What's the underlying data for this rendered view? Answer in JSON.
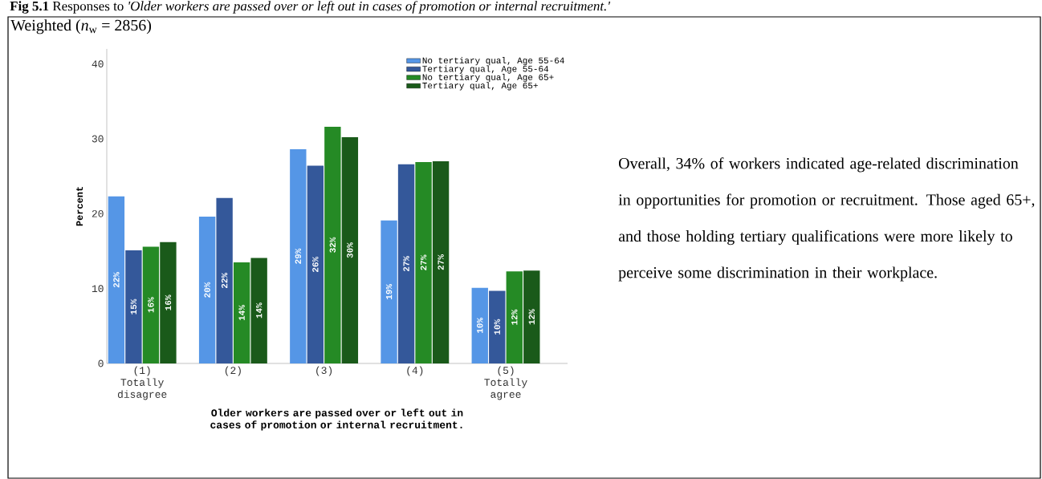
{
  "chart_data": {
    "type": "bar",
    "title": "**Fig 5.1** Responses to *'Older workers are passed over or left out in cases of promotion or internal recruitment.'*",
    "subtitle": "Weighted (*n*$_{w}$ = 2856)",
    "xlabel": "Older workers are passed over or left out in cases of promotion or internal recruitment.",
    "ylabel": "Percent",
    "categories": [
      "(1) Totally disagree",
      "(2)",
      "(3)",
      "(4)",
      "(5) Totally agree"
    ],
    "ylim": [
      0,
      42
    ],
    "yticks": [
      0,
      10,
      20,
      30,
      40
    ],
    "legend": "top right",
    "series": [
      {
        "name": "No tertiary qual, Age 55-64",
        "color": "#5596e6",
        "values": [
          22.3,
          19.6,
          28.6,
          19.1,
          10.1
        ],
        "value_labels": [
          "22%",
          "20%",
          "29%",
          "19%",
          "10%"
        ]
      },
      {
        "name": "Tertiary qual, Age 55-64",
        "color": "#34589a",
        "values": [
          15.1,
          22.1,
          26.4,
          26.6,
          9.7
        ],
        "value_labels": [
          "15%",
          "22%",
          "26%",
          "27%",
          "10%"
        ]
      },
      {
        "name": "No tertiary qual, Age 65+",
        "color": "#258a25",
        "values": [
          15.6,
          13.5,
          31.6,
          26.9,
          12.3
        ],
        "value_labels": [
          "16%",
          "14%",
          "32%",
          "27%",
          "12%"
        ]
      },
      {
        "name": "Tertiary qual, Age 65+",
        "color": "#1a5a1a",
        "values": [
          16.2,
          14.1,
          30.2,
          27.0,
          12.4
        ],
        "value_labels": [
          "16%",
          "14%",
          "30%",
          "27%",
          "12%"
        ]
      }
    ],
    "annotations": [
      "Overall, 34% of workers indicated age-related discrimination in opportunities for promotion or recruitment. Those aged 65+, and those holding tertiary qualifications were more likely to perceive some discrimination in their workplace."
    ]
  }
}
